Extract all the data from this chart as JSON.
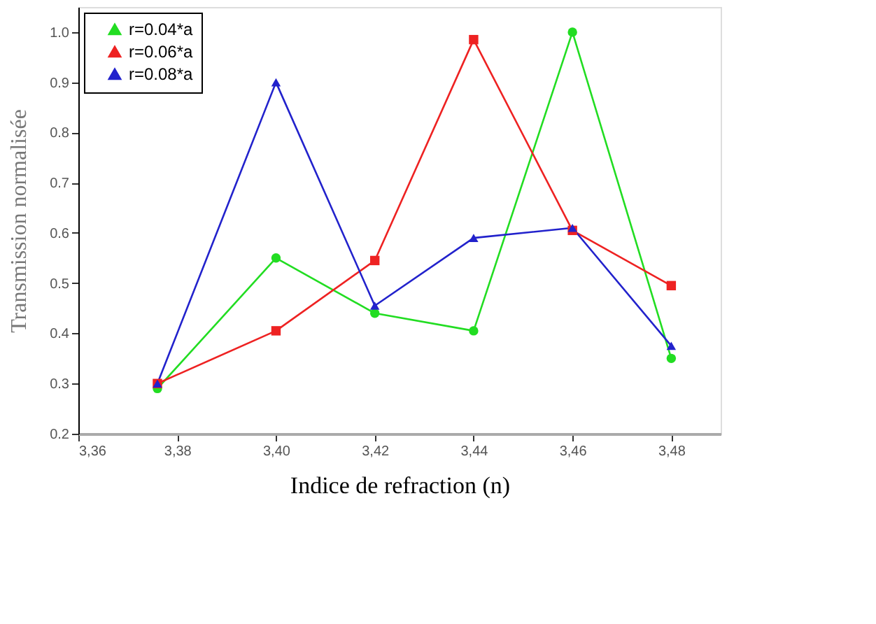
{
  "chart_data": {
    "type": "line",
    "xlabel": "Indice de refraction (n)",
    "ylabel": "Transmission normalisée",
    "x": [
      3.376,
      3.4,
      3.42,
      3.44,
      3.46,
      3.48
    ],
    "series": [
      {
        "name": "r=0.04*a",
        "color": "#22dd22",
        "marker": "circle",
        "values": [
          0.29,
          0.55,
          0.44,
          0.405,
          1.0,
          0.35
        ]
      },
      {
        "name": "r=0.06*a",
        "color": "#ee2222",
        "marker": "square",
        "values": [
          0.3,
          0.405,
          0.545,
          0.985,
          0.605,
          0.495
        ]
      },
      {
        "name": "r=0.08*a",
        "color": "#2222cc",
        "marker": "triangle",
        "values": [
          0.3,
          0.9,
          0.455,
          0.59,
          0.61,
          0.375
        ]
      }
    ],
    "xlim": [
      3.36,
      3.49
    ],
    "xticks": [
      {
        "value": 3.36,
        "label": "3,36"
      },
      {
        "value": 3.38,
        "label": "3,38"
      },
      {
        "value": 3.4,
        "label": "3,40"
      },
      {
        "value": 3.42,
        "label": "3,42"
      },
      {
        "value": 3.44,
        "label": "3,44"
      },
      {
        "value": 3.46,
        "label": "3,46"
      },
      {
        "value": 3.48,
        "label": "3,48"
      }
    ],
    "ylim": [
      0.2,
      1.05
    ],
    "yticks": [
      0.2,
      0.3,
      0.4,
      0.5,
      0.6,
      0.7,
      0.8,
      0.9,
      {
        "value": 1.0,
        "label": "1.0"
      }
    ],
    "grid": false,
    "legend": "top left",
    "line_style": "solid"
  }
}
